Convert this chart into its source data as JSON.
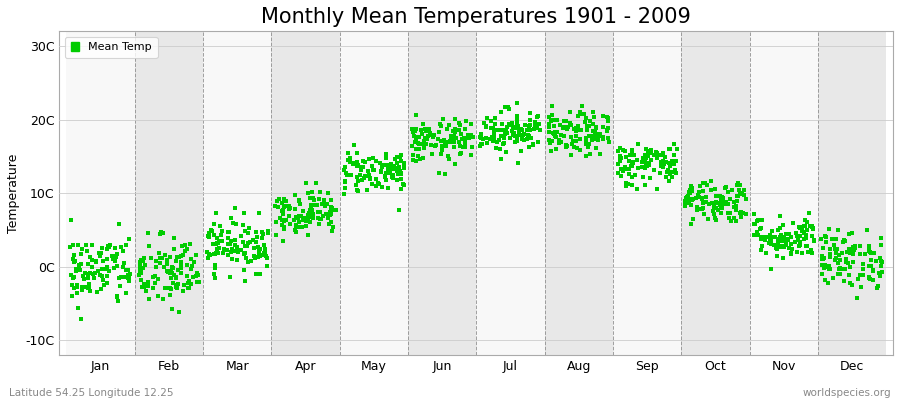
{
  "title": "Monthly Mean Temperatures 1901 - 2009",
  "ylabel": "Temperature",
  "xlabel": "",
  "dot_color": "#00cc00",
  "background_color": "#ffffff",
  "plot_bg_color": "#f0f0f0",
  "band_color_odd": "#f8f8f8",
  "band_color_even": "#e8e8e8",
  "legend_label": "Mean Temp",
  "ytick_labels": [
    "-10C",
    "0C",
    "10C",
    "20C",
    "30C"
  ],
  "ytick_values": [
    -10,
    0,
    10,
    20,
    30
  ],
  "ylim": [
    -12,
    32
  ],
  "xlim": [
    -0.1,
    12.1
  ],
  "month_labels": [
    "Jan",
    "Feb",
    "Mar",
    "Apr",
    "May",
    "Jun",
    "Jul",
    "Aug",
    "Sep",
    "Oct",
    "Nov",
    "Dec"
  ],
  "month_positions": [
    0.5,
    1.5,
    2.5,
    3.5,
    4.5,
    5.5,
    6.5,
    7.5,
    8.5,
    9.5,
    10.5,
    11.5
  ],
  "vline_positions": [
    1,
    2,
    3,
    4,
    5,
    6,
    7,
    8,
    9,
    10,
    11
  ],
  "subtitle_left": "Latitude 54.25 Longitude 12.25",
  "subtitle_right": "worldspecies.org",
  "title_fontsize": 15,
  "label_fontsize": 9,
  "tick_fontsize": 9,
  "marker_size": 2.5,
  "monthly_means": [
    -0.5,
    -0.8,
    3.0,
    7.5,
    13.0,
    17.0,
    18.5,
    18.0,
    14.0,
    9.0,
    4.0,
    1.0
  ],
  "monthly_stds": [
    2.5,
    2.5,
    1.8,
    1.5,
    1.5,
    1.5,
    1.5,
    1.5,
    1.5,
    1.5,
    1.5,
    2.0
  ],
  "years": 109
}
